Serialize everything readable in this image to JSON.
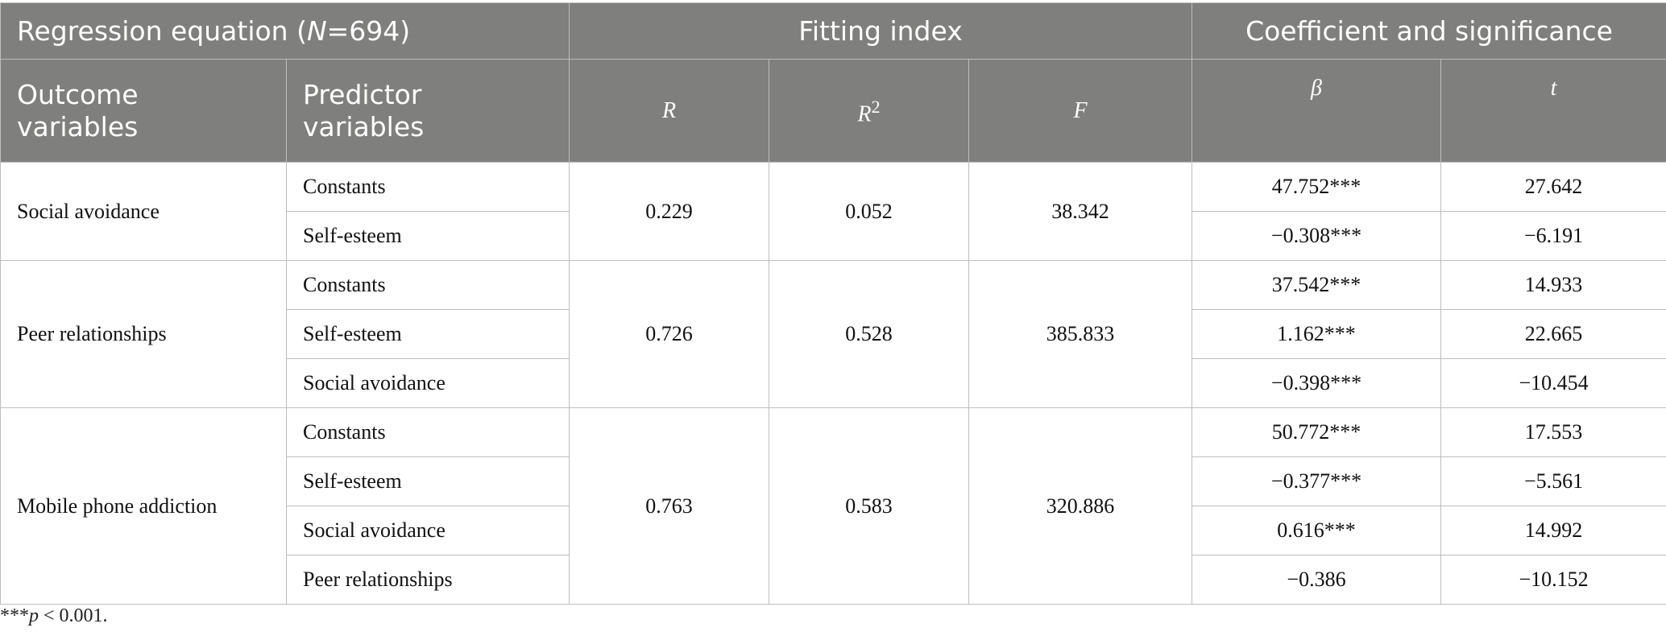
{
  "header": {
    "group1": "Regression equation (N=694)",
    "group1_pre": "Regression equation (",
    "group1_n": "N",
    "group1_post": "=694)",
    "group2": "Fitting index",
    "group3": "Coefficient and significance",
    "col_outcome": "Outcome variables",
    "col_predictor": "Predictor variables",
    "col_r": "R",
    "col_r2_base": "R",
    "col_r2_exp": "2",
    "col_f": "F",
    "col_beta": "β",
    "col_t": "t"
  },
  "groups": [
    {
      "outcome": "Social avoidance",
      "r": "0.229",
      "r2": "0.052",
      "f": "38.342",
      "rows": [
        {
          "predictor": "Constants",
          "beta": "47.752***",
          "t": "27.642"
        },
        {
          "predictor": "Self-esteem",
          "beta": "−0.308***",
          "t": "−6.191"
        }
      ]
    },
    {
      "outcome": "Peer relationships",
      "r": "0.726",
      "r2": "0.528",
      "f": "385.833",
      "rows": [
        {
          "predictor": "Constants",
          "beta": "37.542***",
          "t": "14.933"
        },
        {
          "predictor": "Self-esteem",
          "beta": "1.162***",
          "t": "22.665"
        },
        {
          "predictor": "Social avoidance",
          "beta": "−0.398***",
          "t": "−10.454"
        }
      ]
    },
    {
      "outcome": "Mobile phone addiction",
      "r": "0.763",
      "r2": "0.583",
      "f": "320.886",
      "rows": [
        {
          "predictor": "Constants",
          "beta": "50.772***",
          "t": "17.553"
        },
        {
          "predictor": "Self-esteem",
          "beta": "−0.377***",
          "t": "−5.561"
        },
        {
          "predictor": "Social avoidance",
          "beta": "0.616***",
          "t": "14.992"
        },
        {
          "predictor": "Peer relationships",
          "beta": "−0.386",
          "t": "−10.152"
        }
      ]
    }
  ],
  "note": {
    "stars": "***",
    "p": "p",
    "rest": " < 0.001."
  }
}
